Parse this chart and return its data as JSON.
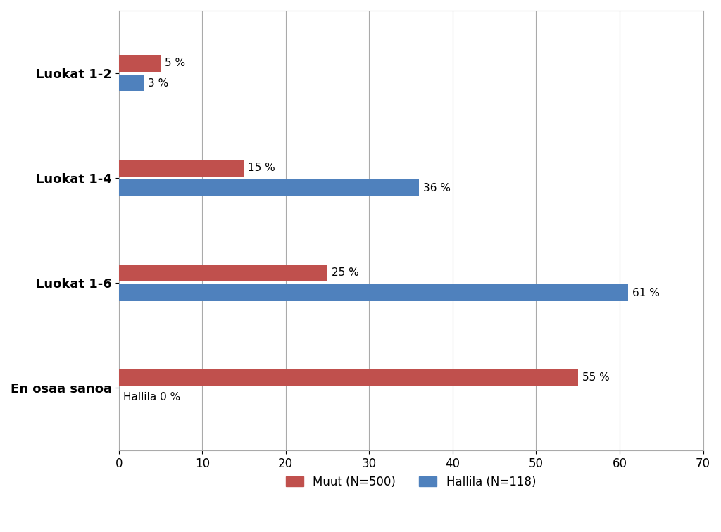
{
  "categories": [
    "En osaa sanoa",
    "Luokat 1-6",
    "Luokat 1-4",
    "Luokat 1-2"
  ],
  "muut_values": [
    55,
    25,
    15,
    5
  ],
  "hallila_values": [
    0,
    61,
    36,
    3
  ],
  "muut_labels": [
    "55 %",
    "25 %",
    "15 %",
    "5 %"
  ],
  "hallila_labels": [
    "Hallila 0 %",
    "61 %",
    "36 %",
    "3 %"
  ],
  "muut_color": "#C0504D",
  "hallila_color": "#4F81BD",
  "xlim": [
    0,
    70
  ],
  "xticks": [
    0,
    10,
    20,
    30,
    40,
    50,
    60,
    70
  ],
  "legend_muut": "Muut (N=500)",
  "legend_hallila": "Hallila (N=118)",
  "background_color": "#FFFFFF",
  "bar_height": 0.32,
  "label_fontsize": 11,
  "tick_fontsize": 12,
  "legend_fontsize": 12,
  "category_fontsize": 13
}
